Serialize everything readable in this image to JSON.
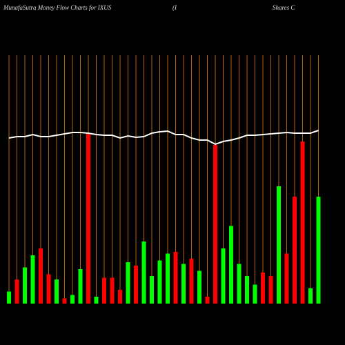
{
  "chart_data": {
    "type": "bar",
    "title": "MunafaSutra  Money Flow  Charts for IXUS",
    "title_parts": [
      "(I",
      "Shares C"
    ],
    "categories": [
      null,
      null,
      null,
      null,
      null,
      null,
      null,
      null,
      null,
      null,
      null,
      null,
      null,
      null,
      null,
      null,
      null,
      null,
      null,
      null,
      null,
      null,
      null,
      null,
      null,
      null,
      null,
      null,
      null,
      null,
      null,
      null,
      null,
      null,
      null,
      null,
      null,
      null,
      null,
      null
    ],
    "values": [
      7,
      14,
      21,
      28,
      32,
      17,
      14,
      3,
      5,
      20,
      99,
      4,
      15,
      15,
      8,
      24,
      22,
      36,
      16,
      25,
      29,
      30,
      23,
      26,
      19,
      4,
      92,
      32,
      45,
      23,
      16,
      11,
      18,
      16,
      68,
      29,
      62,
      94,
      9,
      62
    ],
    "colors": [
      "#00ff00",
      "#ff0000",
      "#00ff00",
      "#00ff00",
      "#ff0000",
      "#ff0000",
      "#00ff00",
      "#ff0000",
      "#00ff00",
      "#00ff00",
      "#ff0000",
      "#00ff00",
      "#ff0000",
      "#ff0000",
      "#ff0000",
      "#00ff00",
      "#ff0000",
      "#00ff00",
      "#00ff00",
      "#00ff00",
      "#00ff00",
      "#ff0000",
      "#00ff00",
      "#ff0000",
      "#00ff00",
      "#ff0000",
      "#ff0000",
      "#00ff00",
      "#00ff00",
      "#00ff00",
      "#00ff00",
      "#00ff00",
      "#ff0000",
      "#ff0000",
      "#00ff00",
      "#ff0000",
      "#ff0000",
      "#ff0000",
      "#00ff00",
      "#00ff00"
    ],
    "line": {
      "color": "#ffffff",
      "values": [
        96,
        96.8,
        96.8,
        98,
        96.8,
        96.8,
        97.6,
        98.4,
        99.2,
        99.2,
        98.8,
        98,
        97.6,
        97.6,
        96,
        97.2,
        96.4,
        96.8,
        98.8,
        99.6,
        100,
        98,
        98,
        96,
        94.8,
        94.8,
        92.4,
        94,
        94.8,
        96,
        97.6,
        97.6,
        98,
        98.4,
        98.8,
        99.2,
        98.8,
        98.8,
        98.8,
        100.4
      ]
    },
    "ylim": [
      0,
      144
    ],
    "grid": true,
    "grid_color": "#b8660b"
  }
}
